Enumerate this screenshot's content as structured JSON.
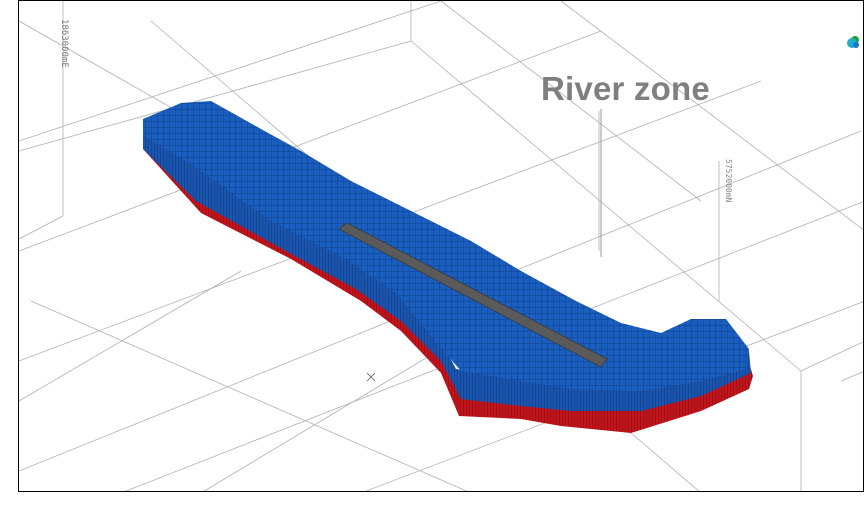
{
  "viewport": {
    "title_label": "River zone",
    "easting_label": "1863000mE",
    "northing_label": "5752000mN",
    "colors": {
      "model_top": "#1a5fc0",
      "model_side": "#0e3f8a",
      "model_base": "#c2141b",
      "river_channel": "#5a5a5a",
      "title_text": "#7f7f7f",
      "grid": "#b0b0b0"
    },
    "icons": {
      "orientation_widget": "axis-orientation-icon",
      "center_marker": "crosshair-icon"
    }
  }
}
